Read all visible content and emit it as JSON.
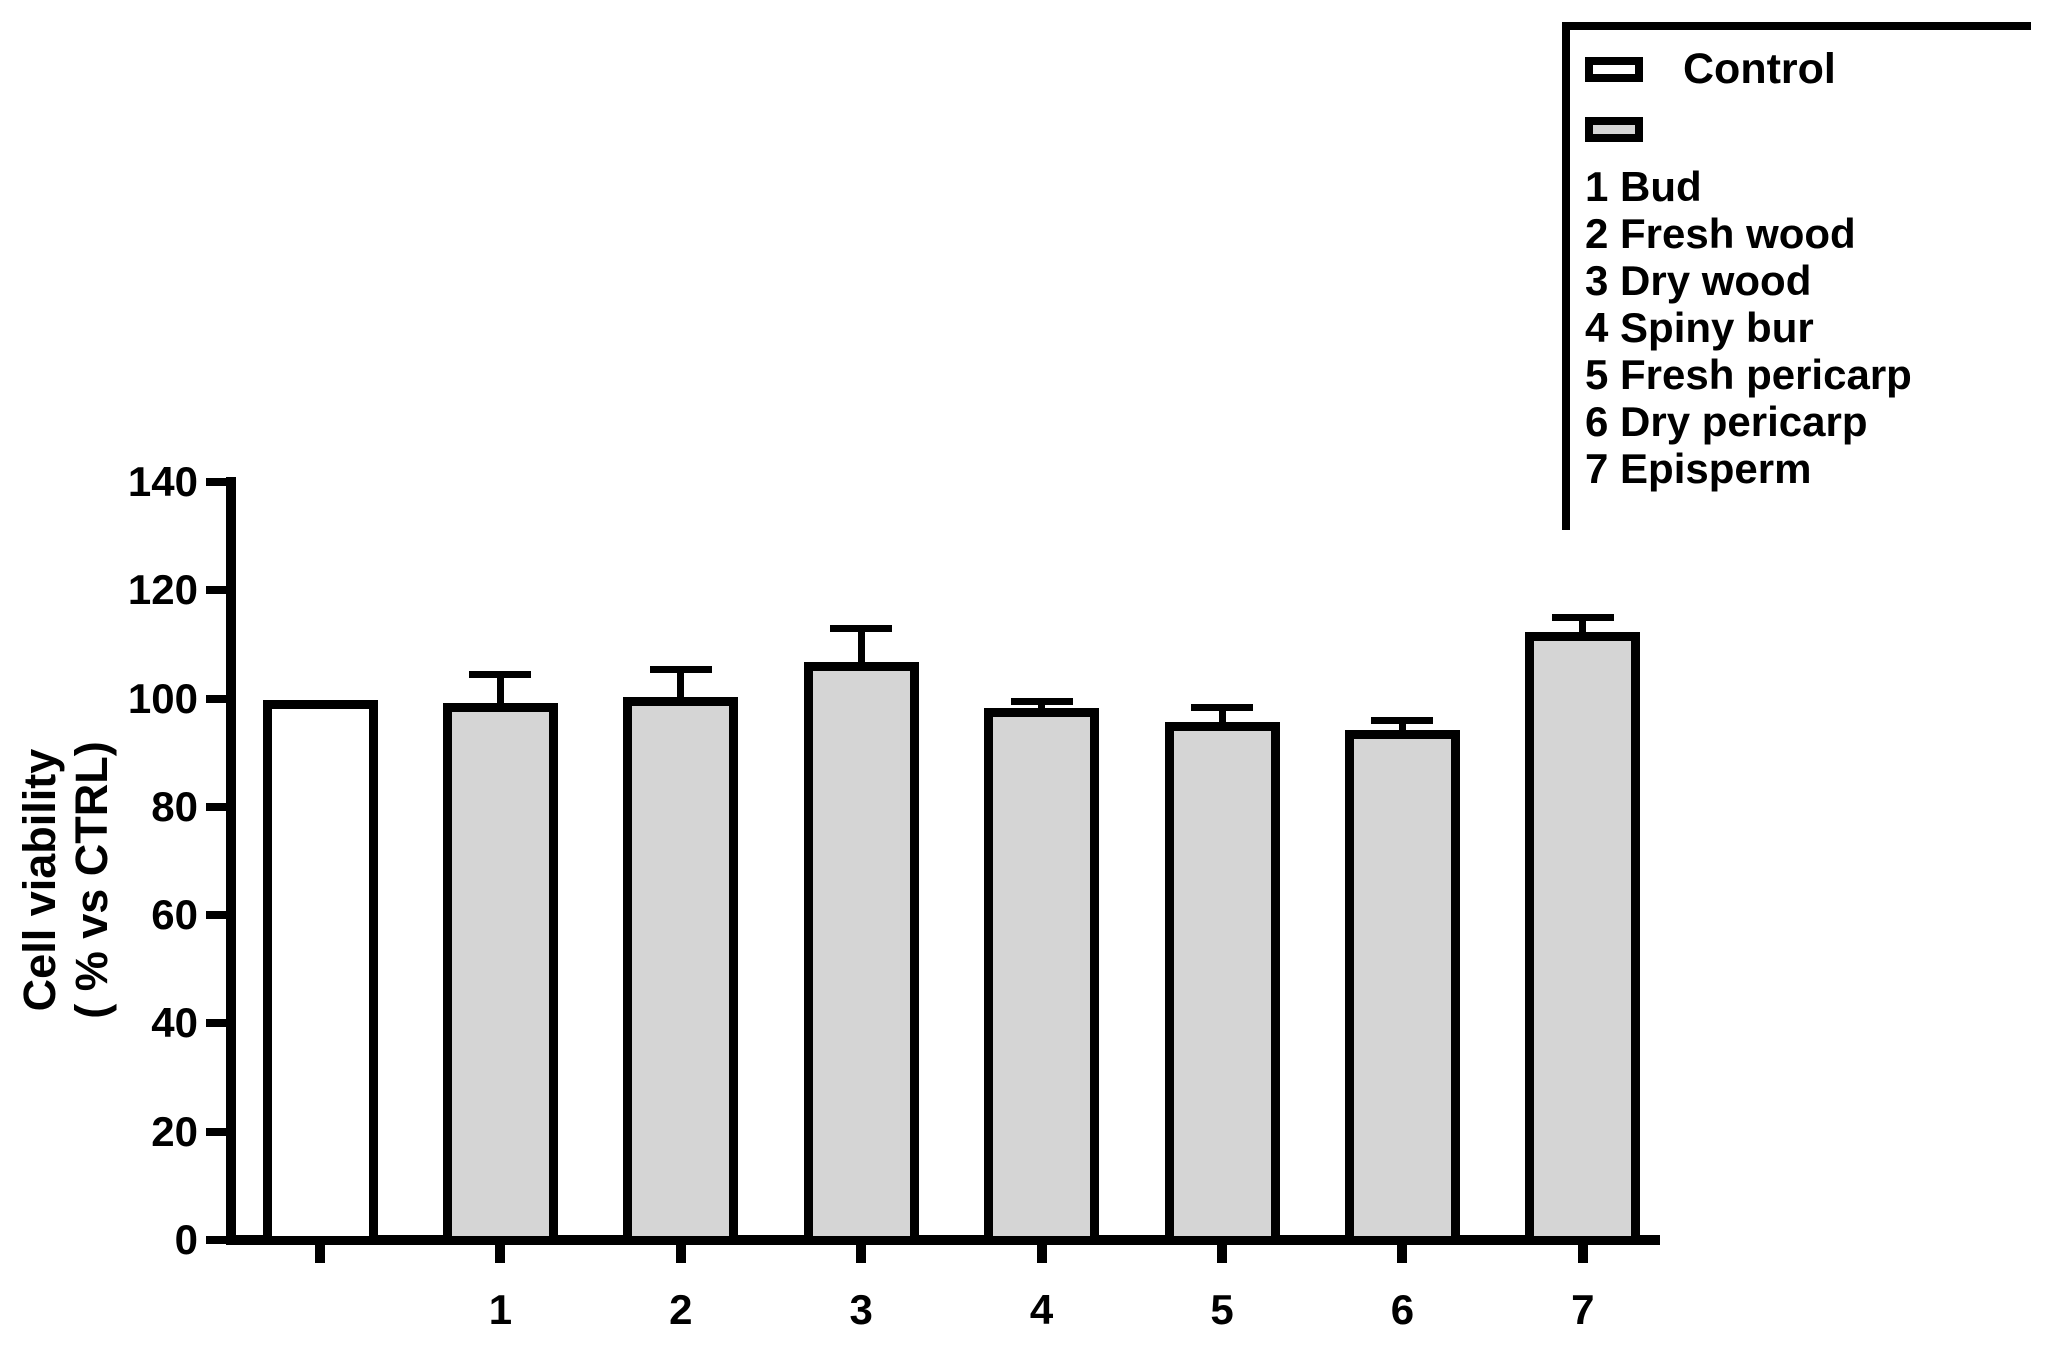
{
  "colors": {
    "outline": "#000000",
    "background": "#ffffff",
    "bar_fill_gray": "#d5d5d5",
    "control_fill": "#ffffff"
  },
  "legend": {
    "control_label": "Control",
    "items": [
      "1 Bud",
      "2 Fresh wood",
      "3 Dry wood",
      "4 Spiny bur",
      "5 Fresh pericarp",
      "6 Dry pericarp",
      "7 Episperm"
    ]
  },
  "chart_data": {
    "type": "bar",
    "title": "",
    "xlabel": "",
    "ylabel_line1": "Cell viability",
    "ylabel_line2": "( % vs CTRL)",
    "ylim": [
      0,
      140
    ],
    "yticks": [
      140,
      120,
      100,
      80,
      60,
      40,
      20,
      0
    ],
    "grid": false,
    "legend_position": "top-right",
    "error_bar_style": "upper-only",
    "bars": [
      {
        "label": "",
        "series": "Control",
        "value": 99,
        "error": null,
        "fill": "#ffffff"
      },
      {
        "label": "1",
        "series": "Bud",
        "value": 98.5,
        "error": 6,
        "fill": "#d5d5d5"
      },
      {
        "label": "2",
        "series": "Fresh wood",
        "value": 99.5,
        "error": 6,
        "fill": "#d5d5d5"
      },
      {
        "label": "3",
        "series": "Dry wood",
        "value": 106,
        "error": 7,
        "fill": "#d5d5d5"
      },
      {
        "label": "4",
        "series": "Spiny bur",
        "value": 97.5,
        "error": 2,
        "fill": "#d5d5d5"
      },
      {
        "label": "5",
        "series": "Fresh pericarp",
        "value": 95,
        "error": 3.5,
        "fill": "#d5d5d5"
      },
      {
        "label": "6",
        "series": "Dry pericarp",
        "value": 93.5,
        "error": 2.5,
        "fill": "#d5d5d5"
      },
      {
        "label": "7",
        "series": "Episperm",
        "value": 111.5,
        "error": 3.5,
        "fill": "#d5d5d5"
      }
    ]
  }
}
